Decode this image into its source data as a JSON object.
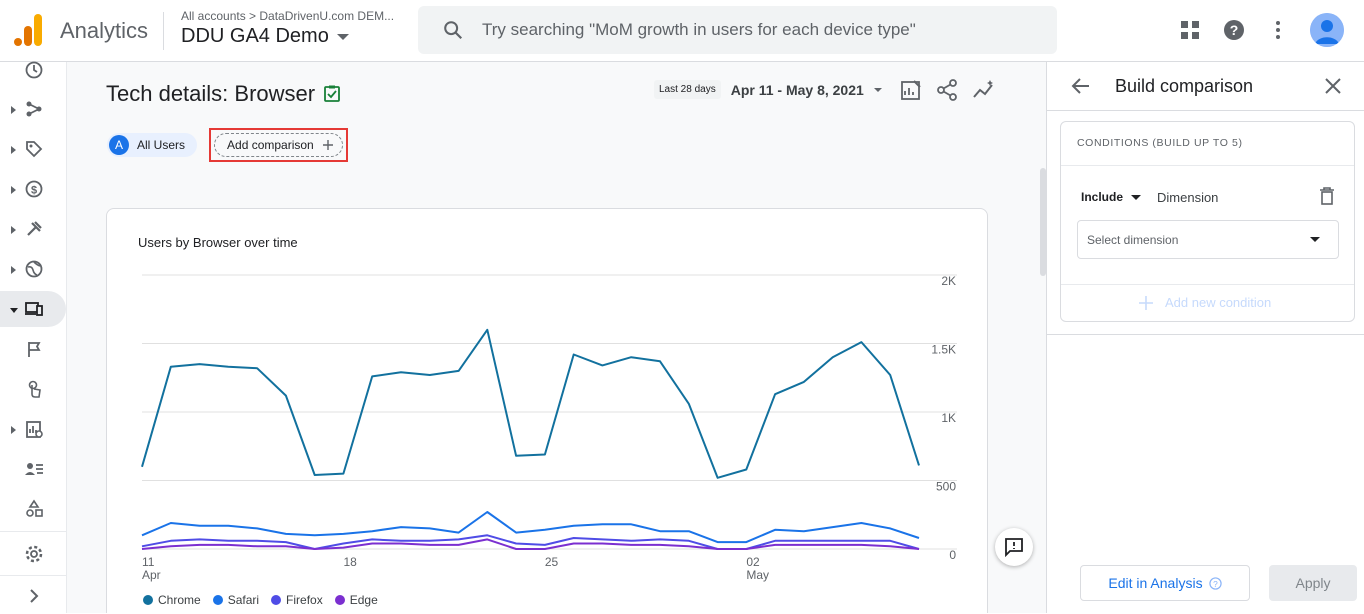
{
  "header": {
    "app_name": "Analytics",
    "account_crumb": "All accounts  >  DataDrivenU.com DEM...",
    "property_name": "DDU GA4 Demo",
    "search_placeholder": "Try searching \"MoM growth in users for each device type\""
  },
  "page": {
    "title": "Tech details: Browser",
    "date_chip": "Last 28 days",
    "date_range": "Apr 11 - May 8, 2021",
    "segment_badge": "A",
    "segment_label": "All Users",
    "add_comparison_label": "Add comparison"
  },
  "chart_data": {
    "type": "line",
    "title": "Users by Browser over time",
    "x_tick_labels": [
      {
        "day": "11",
        "month": "Apr"
      },
      {
        "day": "18",
        "month": ""
      },
      {
        "day": "25",
        "month": ""
      },
      {
        "day": "02",
        "month": "May"
      }
    ],
    "y_tick_labels": [
      "2K",
      "1.5K",
      "1K",
      "500",
      "0"
    ],
    "ylim": [
      0,
      2000
    ],
    "x": [
      "Apr 11",
      "Apr 12",
      "Apr 13",
      "Apr 14",
      "Apr 15",
      "Apr 16",
      "Apr 17",
      "Apr 18",
      "Apr 19",
      "Apr 20",
      "Apr 21",
      "Apr 22",
      "Apr 23",
      "Apr 24",
      "Apr 25",
      "Apr 26",
      "Apr 27",
      "Apr 28",
      "Apr 29",
      "Apr 30",
      "May 1",
      "May 2",
      "May 3",
      "May 4",
      "May 5",
      "May 6",
      "May 7",
      "May 8"
    ],
    "series": [
      {
        "name": "Chrome",
        "color": "#12719e",
        "values": [
          600,
          1330,
          1350,
          1330,
          1320,
          1120,
          540,
          550,
          1260,
          1290,
          1270,
          1300,
          1600,
          680,
          690,
          1420,
          1340,
          1400,
          1370,
          1060,
          520,
          580,
          1130,
          1220,
          1400,
          1510,
          1270,
          610
        ]
      },
      {
        "name": "Safari",
        "color": "#1a73e8",
        "values": [
          100,
          190,
          170,
          170,
          150,
          110,
          100,
          110,
          130,
          160,
          150,
          120,
          270,
          120,
          140,
          170,
          180,
          180,
          130,
          130,
          50,
          50,
          140,
          130,
          160,
          190,
          150,
          80
        ]
      },
      {
        "name": "Firefox",
        "color": "#4f4ce6",
        "values": [
          20,
          60,
          70,
          60,
          60,
          50,
          0,
          40,
          70,
          60,
          60,
          70,
          100,
          40,
          30,
          80,
          70,
          60,
          70,
          60,
          0,
          0,
          60,
          60,
          60,
          60,
          60,
          0
        ]
      },
      {
        "name": "Edge",
        "color": "#7b2fd0",
        "values": [
          0,
          20,
          30,
          30,
          20,
          20,
          0,
          10,
          40,
          40,
          30,
          30,
          70,
          0,
          0,
          40,
          40,
          30,
          30,
          20,
          0,
          0,
          30,
          30,
          30,
          30,
          20,
          0
        ]
      }
    ],
    "grid": true,
    "legend_position": "bottom-left"
  },
  "panel": {
    "title": "Build comparison",
    "conditions_header": "CONDITIONS (BUILD UP TO 5)",
    "include_label": "Include",
    "dimension_label": "Dimension",
    "select_placeholder": "Select dimension",
    "add_condition_label": "Add new condition",
    "edit_analysis_label": "Edit in Analysis",
    "apply_label": "Apply"
  },
  "colors": {
    "accent": "#1a73e8",
    "highlight_box": "#e53935"
  }
}
